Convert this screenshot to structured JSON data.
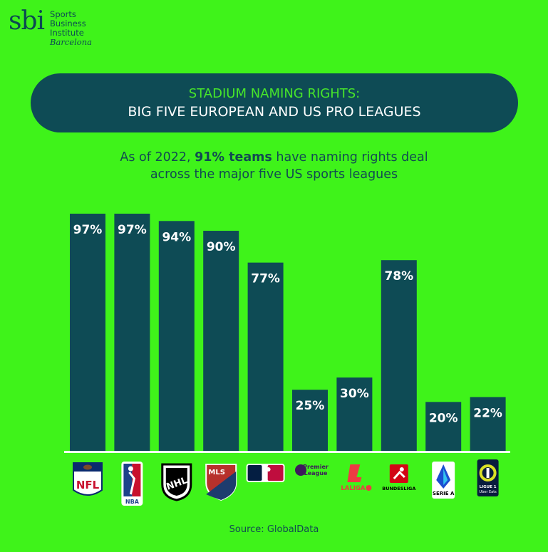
{
  "brand": {
    "mark": "sbi",
    "line1": "Sports",
    "line2": "Business",
    "line3": "Institute",
    "line4": "Barcelona"
  },
  "header": {
    "title_line1": "STADIUM NAMING RIGHTS:",
    "title_line2": "BIG FIVE EUROPEAN AND US PRO LEAGUES"
  },
  "subtitle": {
    "part1": "As of 2022, ",
    "highlight": "91% teams",
    "part2": " have naming rights deal",
    "line2": "across the major five US sports leagues"
  },
  "colors": {
    "background": "#3ff31a",
    "bar": "#0e4b55",
    "accent": "#47e62a",
    "label": "#ffffff"
  },
  "chart_data": {
    "type": "bar",
    "categories": [
      "NFL",
      "NBA",
      "NHL",
      "MLS",
      "MLB",
      "Premier League",
      "LaLiga",
      "Bundesliga",
      "Serie A",
      "Ligue 1"
    ],
    "values": [
      97,
      97,
      94,
      90,
      77,
      25,
      30,
      78,
      20,
      22
    ],
    "value_labels": [
      "97%",
      "97%",
      "94%",
      "90%",
      "77%",
      "25%",
      "30%",
      "78%",
      "20%",
      "22%"
    ],
    "ylim": [
      0,
      100
    ],
    "grid": false
  },
  "logos": [
    {
      "icon": "nfl-logo-icon",
      "text": "NFL"
    },
    {
      "icon": "nba-logo-icon",
      "text": "NBA"
    },
    {
      "icon": "nhl-logo-icon",
      "text": "NHL"
    },
    {
      "icon": "mls-logo-icon",
      "text": "MLS"
    },
    {
      "icon": "mlb-logo-icon",
      "text": ""
    },
    {
      "icon": "premier-league-logo-icon",
      "text": "Premier League"
    },
    {
      "icon": "laliga-logo-icon",
      "text": "LALIGA"
    },
    {
      "icon": "bundesliga-logo-icon",
      "text": "BUNDESLIGA"
    },
    {
      "icon": "serie-a-logo-icon",
      "text": "SERIE A"
    },
    {
      "icon": "ligue-1-logo-icon",
      "text": "LIGUE 1 Uber Eats"
    }
  ],
  "source": "Source: GlobalData"
}
